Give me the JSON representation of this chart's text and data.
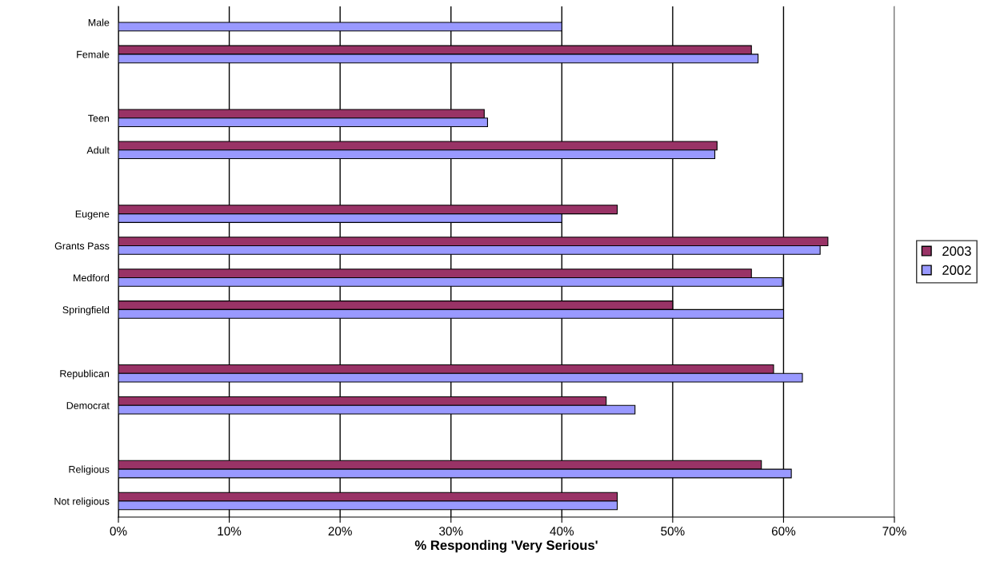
{
  "chart_data": {
    "type": "bar",
    "orientation": "horizontal",
    "xlabel": "% Responding 'Very Serious'",
    "categories": [
      "Male",
      "Female",
      null,
      "Teen",
      "Adult",
      null,
      "Eugene",
      "Grants Pass",
      "Medford",
      "Springfield",
      null,
      "Republican",
      "Democrat",
      null,
      "Religious",
      "Not religious"
    ],
    "series": [
      {
        "name": "2003",
        "color": "#993366",
        "values": [
          null,
          57.1,
          null,
          33.0,
          54.0,
          null,
          45.0,
          64.0,
          57.1,
          50.0,
          null,
          59.1,
          44.0,
          null,
          58.0,
          45.0
        ]
      },
      {
        "name": "2002",
        "color": "#9999ff",
        "values": [
          40.0,
          57.7,
          null,
          33.3,
          53.8,
          null,
          40.0,
          63.3,
          59.9,
          60.0,
          null,
          61.7,
          46.6,
          null,
          60.7,
          45.0
        ]
      }
    ],
    "xlim": [
      0,
      70
    ],
    "xticks": [
      {
        "value": 0,
        "label": "0%"
      },
      {
        "value": 10,
        "label": "10%"
      },
      {
        "value": 20,
        "label": "20%"
      },
      {
        "value": 30,
        "label": "30%"
      },
      {
        "value": 40,
        "label": "40%"
      },
      {
        "value": 50,
        "label": "50%"
      },
      {
        "value": 60,
        "label": "60%"
      },
      {
        "value": 70,
        "label": "70%"
      }
    ],
    "grid": "x",
    "legend": "right"
  }
}
